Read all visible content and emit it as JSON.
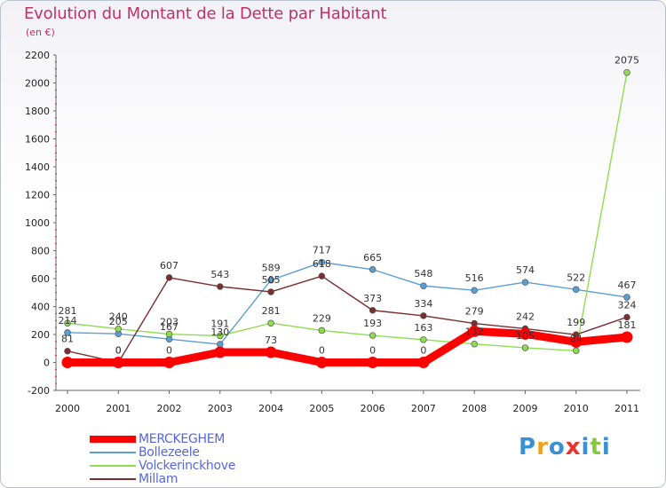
{
  "chart_data": {
    "type": "line",
    "title": "Evolution du Montant de la Dette par Habitant",
    "subtitle": "(en €)",
    "x": [
      "2000",
      "2001",
      "2002",
      "2003",
      "2004",
      "2005",
      "2006",
      "2007",
      "2008",
      "2009",
      "2010",
      "2011"
    ],
    "ylim": [
      -200,
      2200
    ],
    "yticks": [
      -200,
      0,
      200,
      400,
      600,
      800,
      1000,
      1200,
      1400,
      1600,
      1800,
      2000,
      2200
    ],
    "grid": false,
    "legend_position": "bottom-left",
    "series": [
      {
        "name": "MERCKEGHEM",
        "color": "#ff0000",
        "values": [
          0,
          0,
          0,
          73,
          73,
          0,
          0,
          0,
          223,
          204,
          147,
          181
        ],
        "labels": [
          "",
          "0",
          "0",
          "",
          "73",
          "0",
          "0",
          "0",
          "",
          "",
          "",
          "181"
        ]
      },
      {
        "name": "Bollezeele",
        "color": "#5a9fd4",
        "values": [
          214,
          205,
          167,
          130,
          589,
          717,
          665,
          548,
          516,
          574,
          522,
          467
        ],
        "labels": [
          "214",
          "205",
          "167",
          "130",
          "589",
          "717",
          "665",
          "548",
          "516",
          "574",
          "522",
          "467"
        ]
      },
      {
        "name": "Volckerinckhove",
        "color": "#8fdc50",
        "values": [
          281,
          240,
          203,
          191,
          281,
          229,
          193,
          163,
          132,
          105,
          84,
          2075
        ],
        "labels": [
          "281",
          "240",
          "203",
          "191",
          "281",
          "229",
          "193",
          "163",
          "132",
          "105",
          "84",
          "2075"
        ]
      },
      {
        "name": "Millam",
        "color": "#7a2e2e",
        "values": [
          81,
          0,
          607,
          543,
          505,
          618,
          373,
          334,
          279,
          242,
          199,
          324
        ],
        "labels": [
          "81",
          "0",
          "607",
          "543",
          "505",
          "618",
          "373",
          "334",
          "279",
          "242",
          "199",
          "324"
        ]
      }
    ]
  },
  "logo": {
    "letters": [
      "P",
      "r",
      "o",
      "x",
      "i",
      "t",
      "i"
    ],
    "colors": [
      "#3a8fd6",
      "#f0a21c",
      "#3a8fd6",
      "#e8342c",
      "#3a8fd6",
      "#8cc63e",
      "#3a8fd6"
    ]
  }
}
